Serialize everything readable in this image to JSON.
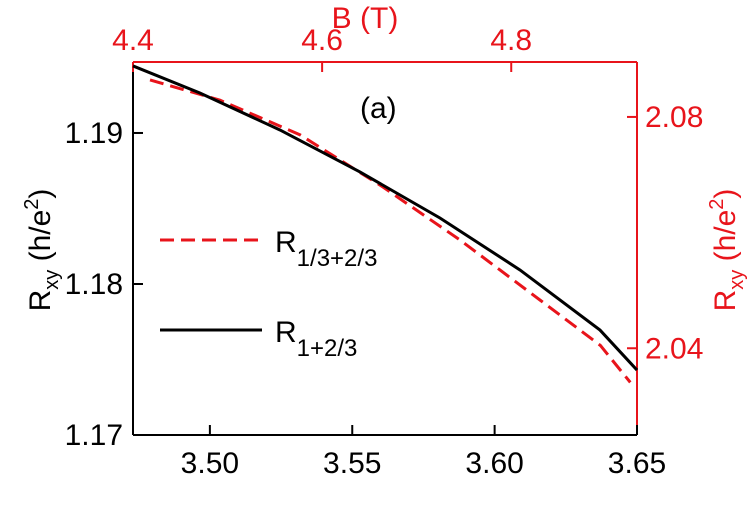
{
  "chart_data": {
    "type": "line",
    "annotation": "(a)",
    "ylabel": [
      "R",
      "xy",
      " (h/e",
      "2",
      ")"
    ],
    "y2label": [
      "R",
      "xy",
      " (h/e",
      "2",
      ")"
    ],
    "x2label": "B (T)",
    "xlim": [
      3.473,
      3.65
    ],
    "xticks": [
      {
        "value": 3.5,
        "label": "3.50"
      },
      3.55,
      {
        "value": 3.6,
        "label": "3.60"
      },
      3.65
    ],
    "ylim": [
      1.17,
      1.1947
    ],
    "yticks": [
      1.17,
      1.18,
      1.19
    ],
    "x2lim": [
      4.4,
      4.933
    ],
    "x2ticks": [
      4.4,
      4.6,
      4.8
    ],
    "y2lim": [
      2.025,
      2.0895
    ],
    "y2ticks": [
      2.04,
      2.08
    ],
    "axis_color2": "#e8141b",
    "series": [
      {
        "name": "R1/3+2/3",
        "color": "#e8141b",
        "dash": true,
        "axis": "y2",
        "xaxis": "x2",
        "x": [
          4.418,
          4.492,
          4.5767,
          4.6614,
          4.746,
          4.8307,
          4.8942,
          4.9259
        ],
        "values": [
          2.0864,
          2.0829,
          2.0769,
          2.0682,
          2.0587,
          2.0483,
          2.0405,
          2.0341
        ]
      },
      {
        "name": "R1+2/3",
        "color": "#000000",
        "dash": false,
        "x": [
          3.473,
          3.4965,
          3.5246,
          3.5527,
          3.5808,
          3.6089,
          3.637,
          3.65
        ],
        "values": [
          1.19444,
          1.19265,
          1.1902,
          1.18742,
          1.18437,
          1.18093,
          1.17695,
          1.1743
        ]
      }
    ]
  }
}
